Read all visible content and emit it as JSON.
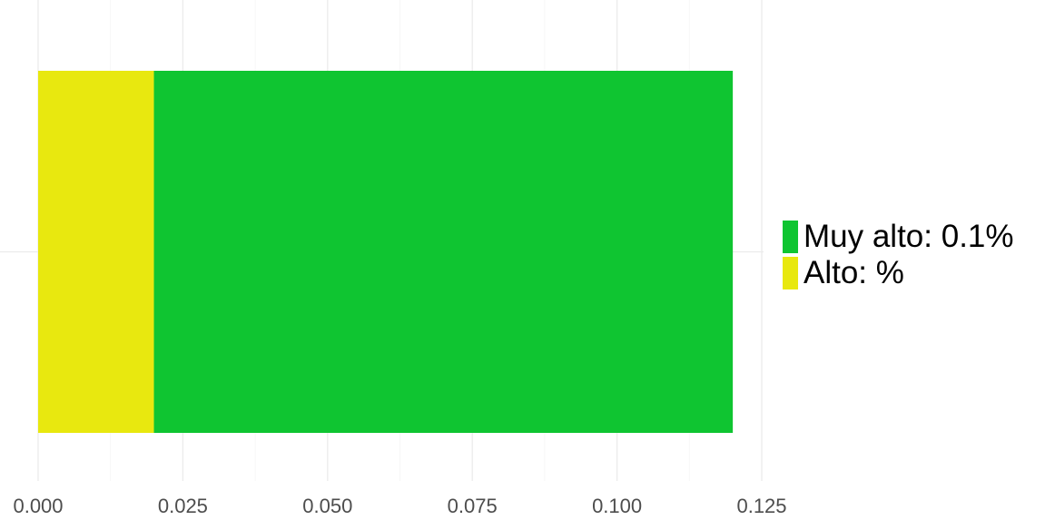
{
  "chart_data": {
    "type": "bar",
    "orientation": "horizontal",
    "stacked": true,
    "title": "",
    "xlabel": "",
    "ylabel": "",
    "xlim": [
      0,
      0.125
    ],
    "x_ticks": [
      0,
      0.025,
      0.05,
      0.075,
      0.1,
      0.125
    ],
    "x_tick_labels": [
      "0.000",
      "0.025",
      "0.050",
      "0.075",
      "0.100",
      "0.125"
    ],
    "grid": true,
    "legend_position": "right",
    "series": [
      {
        "name": "Alto: %",
        "value": 0.02,
        "color": "#e8e80f"
      },
      {
        "name": "Muy alto: 0.1%",
        "value": 0.1,
        "color": "#0fc531"
      }
    ],
    "legend": [
      {
        "label": "Muy alto: 0.1%",
        "color": "#0fc531"
      },
      {
        "label": "Alto: %",
        "color": "#e8e80f"
      }
    ]
  }
}
